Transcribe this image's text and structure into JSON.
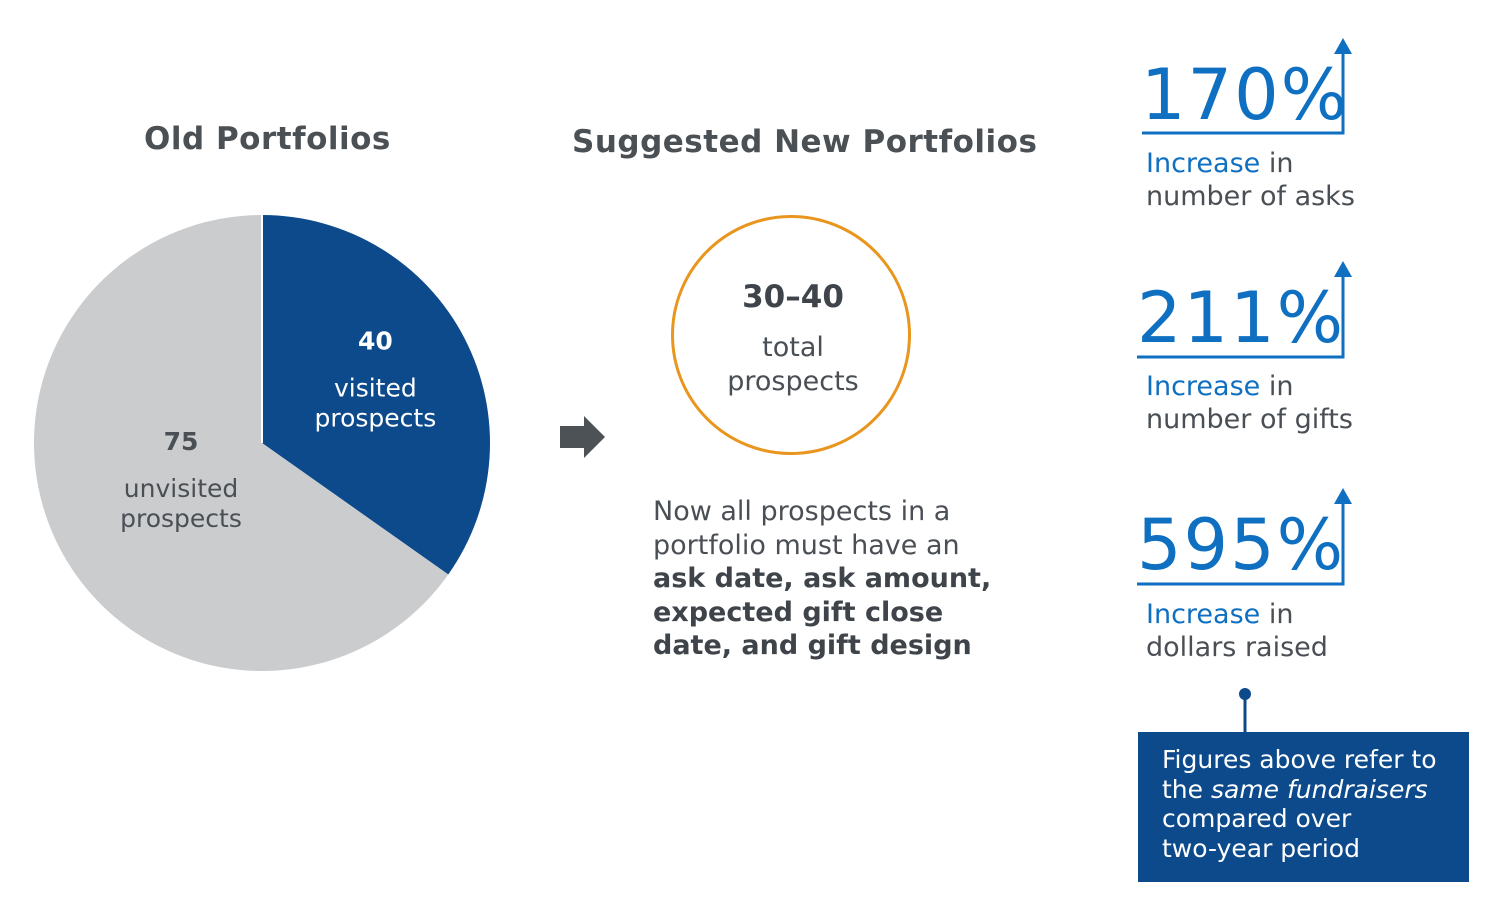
{
  "chart_data": {
    "type": "pie",
    "title": "Old Portfolios",
    "slices": [
      {
        "value": 40,
        "value_label": "40",
        "label_line1": "visited",
        "label_line2": "prospects",
        "color": "#0d4a8c"
      },
      {
        "value": 75,
        "value_label": "75",
        "label_line1": "unvisited",
        "label_line2": "prospects",
        "color": "#cbcccd"
      }
    ]
  },
  "suggested": {
    "title": "Suggested New Portfolios",
    "circle_value": "30–40",
    "circle_label_line1": "total",
    "circle_label_line2": "prospects",
    "desc_line1": "Now all prospects in a",
    "desc_line2": "portfolio must have an",
    "desc_bold1": "ask date, ask amount,",
    "desc_bold2": "expected gift close",
    "desc_bold3": "date, and gift design"
  },
  "stats": [
    {
      "value": "170%",
      "accent": "Increase",
      "rest": " in",
      "line2": "number of asks"
    },
    {
      "value": "211%",
      "accent": "Increase",
      "rest": " in",
      "line2": "number of gifts"
    },
    {
      "value": "595%",
      "accent": "Increase",
      "rest": " in",
      "line2": "dollars raised"
    }
  ],
  "note": {
    "line1": "Figures above refer to",
    "line2_plain": "the ",
    "line2_italic": "same fundraisers",
    "line3": "compared over",
    "line4": "two-year period"
  },
  "colors": {
    "brand_blue": "#0d4a8c",
    "accent_blue": "#0f6fc0",
    "ring_orange": "#e8961e",
    "gray_slice": "#cbcccd",
    "arrow_gray": "#4d5257"
  },
  "icons": {
    "flow_arrow": "right-arrow-icon",
    "stat_arrow": "up-arrow-icon"
  }
}
